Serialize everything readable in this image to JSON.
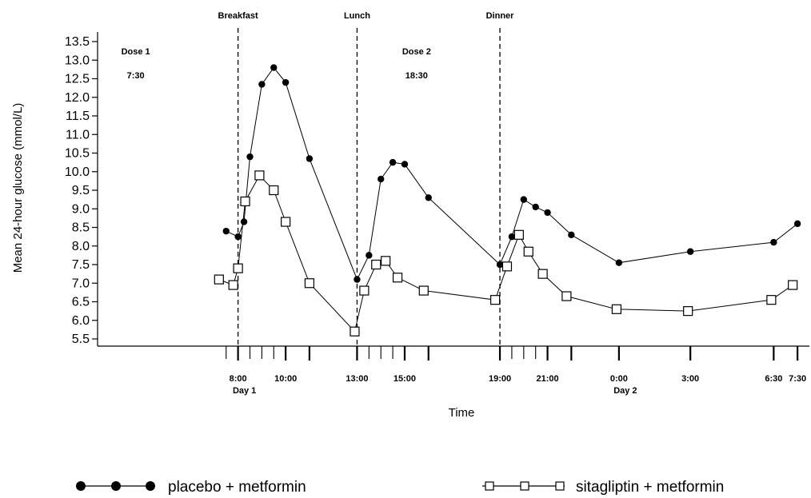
{
  "chart_data": {
    "type": "line",
    "title": "",
    "xlabel": "Time",
    "ylabel": "Mean  24-hour glucose (mmol/L)",
    "ylim": [
      5.5,
      13.5
    ],
    "y_ticks": [
      5.5,
      6.0,
      6.5,
      7.0,
      7.5,
      8.0,
      8.5,
      9.0,
      9.5,
      10.0,
      10.5,
      11.0,
      11.5,
      12.0,
      12.5,
      13.0,
      13.5
    ],
    "y_tick_labels": [
      "5.5",
      "6.0",
      "6.5",
      "7.0",
      "7.5",
      "8.0",
      "8.5",
      "9.0",
      "9.5",
      "10.0",
      "10.5",
      "11.0",
      "11.5",
      "12.0",
      "12.5",
      "13.0",
      "13.5"
    ],
    "x_unit": "hours from 0:00 of Day 1",
    "x_range": [
      2.1,
      32.0
    ],
    "x_tick_positions": [
      7.5,
      8.0,
      8.5,
      9.0,
      9.5,
      10.0,
      11.0,
      13.0,
      13.5,
      14.0,
      14.5,
      15.0,
      16.0,
      19.0,
      19.5,
      20.0,
      20.5,
      21.0,
      22.0,
      24.0,
      27.0,
      30.5,
      31.5
    ],
    "x_major_ticks": [
      8.0,
      10.0,
      11.0,
      13.0,
      15.0,
      16.0,
      19.0,
      21.0,
      22.0,
      24.0,
      27.0,
      30.5,
      31.5
    ],
    "x_tick_labels": [
      {
        "x": 8.0,
        "label": "8:00"
      },
      {
        "x": 10.0,
        "label": "10:00"
      },
      {
        "x": 13.0,
        "label": "13:00"
      },
      {
        "x": 15.0,
        "label": "15:00"
      },
      {
        "x": 19.0,
        "label": "19:00"
      },
      {
        "x": 21.0,
        "label": "21:00"
      },
      {
        "x": 24.0,
        "label": "0:00"
      },
      {
        "x": 27.0,
        "label": "3:00"
      },
      {
        "x": 30.5,
        "label": "6:30"
      },
      {
        "x": 31.5,
        "label": "7:30"
      }
    ],
    "day_labels": [
      {
        "x": 8.0,
        "label": "Day 1"
      },
      {
        "x": 24.0,
        "label": "Day 2"
      }
    ],
    "meal_lines": [
      {
        "x": 8.0,
        "label": "Breakfast"
      },
      {
        "x": 13.0,
        "label": "Lunch"
      },
      {
        "x": 19.0,
        "label": "Dinner"
      }
    ],
    "annotations": [
      {
        "lines": [
          "Dose 1",
          "7:30"
        ],
        "x": 3.7
      },
      {
        "lines": [
          "Dose 2",
          "18:30"
        ],
        "x": 15.5
      }
    ],
    "series": [
      {
        "name": "placebo + metformin",
        "marker": "filled-circle",
        "color": "#000000",
        "x": [
          7.5,
          8.0,
          8.25,
          8.5,
          9.0,
          9.5,
          10.0,
          11.0,
          13.0,
          13.5,
          14.0,
          14.5,
          15.0,
          16.0,
          19.0,
          19.5,
          20.0,
          20.5,
          21.0,
          22.0,
          24.0,
          27.0,
          30.5,
          31.5
        ],
        "y": [
          8.4,
          8.25,
          8.65,
          10.4,
          12.35,
          12.8,
          12.4,
          10.35,
          7.1,
          7.75,
          9.8,
          10.25,
          10.2,
          9.3,
          7.5,
          8.25,
          9.25,
          9.05,
          8.9,
          8.3,
          7.55,
          7.85,
          8.1,
          8.6
        ]
      },
      {
        "name": "sitagliptin + metformin",
        "marker": "open-square",
        "color": "#000000",
        "x": [
          7.2,
          7.8,
          8.0,
          8.3,
          8.9,
          9.5,
          10.0,
          11.0,
          12.9,
          13.3,
          13.8,
          14.2,
          14.7,
          15.8,
          18.8,
          19.3,
          19.8,
          20.2,
          20.8,
          21.8,
          23.9,
          26.9,
          30.4,
          31.3
        ],
        "y": [
          7.1,
          6.95,
          7.4,
          9.2,
          9.9,
          9.5,
          8.65,
          7.0,
          5.7,
          6.8,
          7.5,
          7.6,
          7.15,
          6.8,
          6.55,
          7.45,
          8.3,
          7.85,
          7.25,
          6.65,
          6.3,
          6.25,
          6.55,
          6.95
        ]
      }
    ]
  }
}
